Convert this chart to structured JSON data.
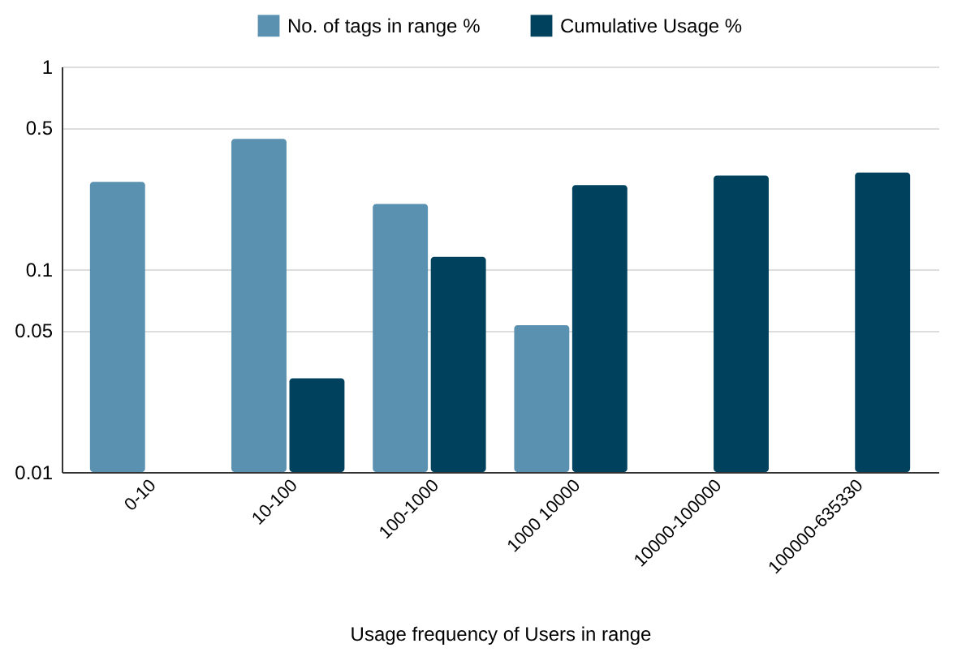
{
  "chart_data": {
    "type": "bar",
    "xlabel": "Usage frequency of Users in range",
    "categories": [
      "0-10",
      "10-100",
      "100-1000",
      "1000 10000",
      "10000-100000",
      "100000-635330"
    ],
    "series": [
      {
        "name": "No. of tags in range %",
        "color": "#5b91b0",
        "values": [
          0.27,
          0.44,
          0.21,
          0.053,
          0.01,
          0.01
        ]
      },
      {
        "name": "Cumulative Usage %",
        "color": "#00425e",
        "values": [
          0.01,
          0.029,
          0.115,
          0.26,
          0.29,
          0.3
        ]
      }
    ],
    "log": "y",
    "ylim": [
      0.01,
      1
    ],
    "yticks": [
      0.01,
      0.05,
      0.1,
      0.5,
      1
    ],
    "grid": "y",
    "legend": "top"
  }
}
